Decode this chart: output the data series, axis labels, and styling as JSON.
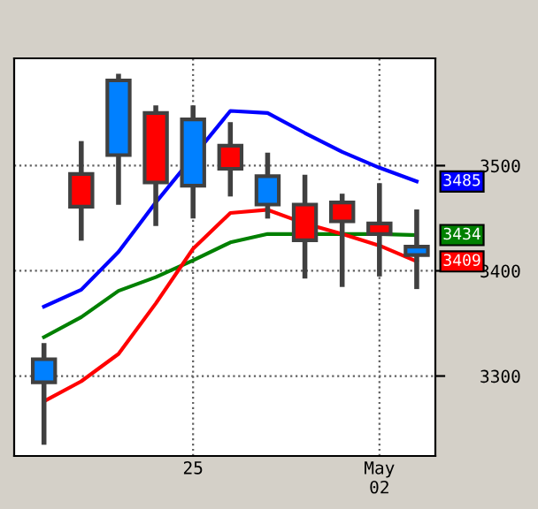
{
  "chart_data": {
    "type": "candlestick",
    "categories": [
      null,
      null,
      null,
      null,
      "25",
      null,
      null,
      null,
      null,
      "May\n02",
      null
    ],
    "ohlc": [
      [
        3294,
        3329,
        3237,
        3316
      ],
      [
        3492,
        3521,
        3431,
        3461
      ],
      [
        3510,
        3585,
        3465,
        3581
      ],
      [
        3550,
        3555,
        3445,
        3484
      ],
      [
        3481,
        3555,
        3452,
        3544
      ],
      [
        3519,
        3539,
        3473,
        3497
      ],
      [
        3463,
        3510,
        3452,
        3490
      ],
      [
        3463,
        3489,
        3395,
        3429
      ],
      [
        3465,
        3471,
        3387,
        3447
      ],
      [
        3445,
        3481,
        3397,
        3435
      ],
      [
        3415,
        3456,
        3385,
        3423
      ]
    ],
    "colors": [
      "#0080ff",
      "#ff0000",
      "#0080ff",
      "#ff0000",
      "#0080ff",
      "#ff0000",
      "#0080ff",
      "#ff0000",
      "#ff0000",
      "#ff0000",
      "#0080ff"
    ],
    "series": [
      {
        "type": "line",
        "color": "#0000ff",
        "values": [
          3366,
          3382,
          3418,
          3465,
          null,
          3552,
          3550,
          3531,
          3513,
          3498,
          3485
        ],
        "value_labels": [
          null,
          null,
          null,
          null,
          null,
          null,
          null,
          null,
          null,
          null,
          "3485"
        ]
      },
      {
        "type": "line",
        "color": "#008000",
        "values": [
          3337,
          3356,
          3381,
          3394,
          3410,
          3427,
          3435,
          null,
          3435,
          3435,
          3434
        ],
        "value_labels": [
          null,
          null,
          null,
          null,
          null,
          null,
          null,
          null,
          null,
          null,
          "3434"
        ]
      },
      {
        "type": "line",
        "color": "#ff0000",
        "values": [
          3276,
          3295,
          3321,
          3369,
          3421,
          3455,
          3458,
          3445,
          3435,
          3424,
          3409
        ],
        "value_labels": [
          null,
          null,
          null,
          null,
          null,
          null,
          null,
          null,
          null,
          null,
          "3409"
        ]
      }
    ],
    "ylim": [
      3224,
      3602
    ],
    "yticks": [
      3300,
      3400,
      3500
    ],
    "grid": true
  }
}
